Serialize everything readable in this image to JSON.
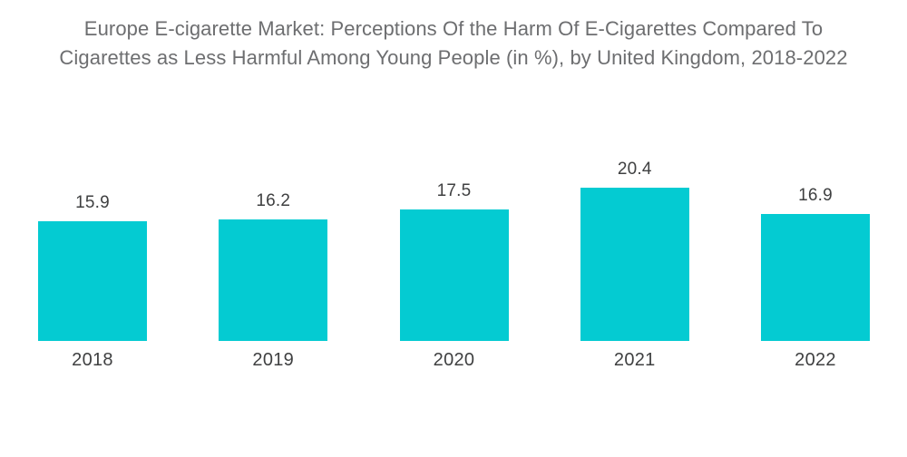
{
  "header": {
    "title_lines": [
      "Europe E-cigarette Market: Perceptions Of the Harm Of E-Cigarettes Compared To",
      "Cigarettes as Less Harmful Among Young People (in %), by United Kingdom, 2018-2022"
    ]
  },
  "chart_data": {
    "type": "bar",
    "title": "Europe E-cigarette Market: Perceptions Of the Harm Of E-Cigarettes Compared To Cigarettes as Less Harmful Among Young People (in %), by United Kingdom, 2018-2022",
    "categories": [
      "2018",
      "2019",
      "2020",
      "2021",
      "2022"
    ],
    "values": [
      15.9,
      16.2,
      17.5,
      20.4,
      16.9
    ],
    "data_labels": [
      "15.9",
      "16.2",
      "17.5",
      "20.4",
      "16.9"
    ],
    "unit": "%",
    "xlabel": "",
    "ylabel": "",
    "grid": false,
    "legend": false,
    "colors": {
      "bar": "#04cbd2",
      "title_text": "#6d6e70",
      "label_text": "#3f4041",
      "background": "#ffffff"
    }
  }
}
